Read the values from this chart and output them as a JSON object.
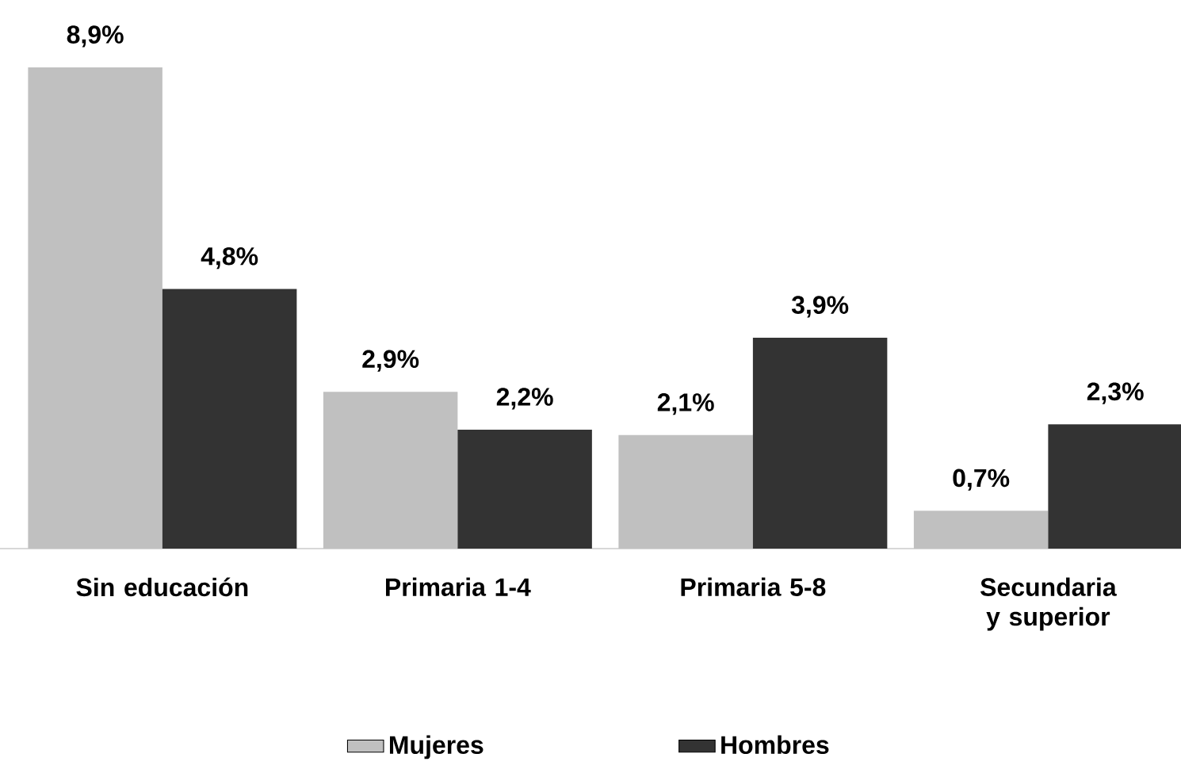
{
  "chart_data": {
    "type": "bar",
    "categories": [
      "Sin educación",
      "Primaria 1-4",
      "Primaria 5-8",
      "Secundaria y superior"
    ],
    "series": [
      {
        "name": "Mujeres",
        "color": "#c0c0c0",
        "values": [
          8.9,
          2.9,
          2.1,
          0.7
        ],
        "value_labels": [
          "8,9%",
          "2,9%",
          "2,1%",
          "0,7%"
        ]
      },
      {
        "name": "Hombres",
        "color": "#333333",
        "values": [
          4.8,
          2.2,
          3.9,
          2.3
        ],
        "value_labels": [
          "4,8%",
          "2,2%",
          "3,9%",
          "2,3%"
        ]
      }
    ],
    "legend": "bottom"
  }
}
